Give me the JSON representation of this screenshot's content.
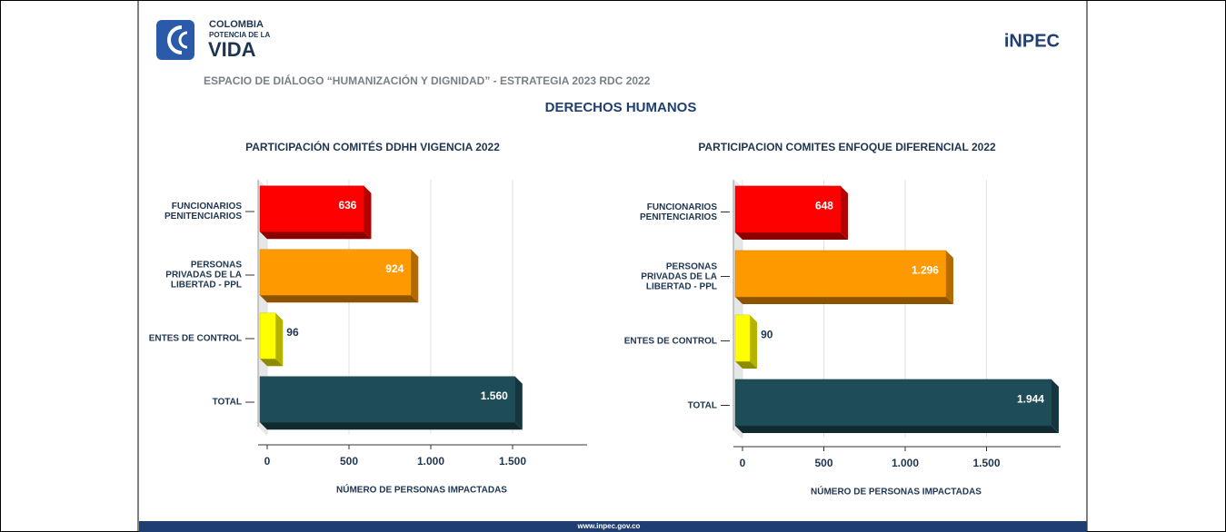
{
  "header": {
    "logo_top": "COLOMBIA",
    "logo_middle": "POTENCIA DE LA",
    "logo_bottom": "VIDA",
    "brand": "iNPEC",
    "title": "ESPACIO DE DIÁLOGO “HUMANIZACIÓN Y DIGNIDAD” - ESTRATEGIA 2023 RDC 2022",
    "subtitle": "DERECHOS HUMANOS"
  },
  "footer": "www.inpec.gov.co",
  "chart_data": [
    {
      "type": "hbar",
      "title": "PARTICIPACIÓN COMITÉS DDHH VIGENCIA 2022",
      "categories": [
        "FUNCIONARIOS\nPENITENCIARIOS",
        "PERSONAS\nPRIVADAS DE LA\nLIBERTAD - PPL",
        "ENTES DE CONTROL",
        "TOTAL"
      ],
      "values": [
        636,
        924,
        96,
        1560
      ],
      "value_labels": [
        "636",
        "924",
        "96",
        "1.560"
      ],
      "colors": [
        "#ff0000",
        "#ff9900",
        "#ffff00",
        "#1e4d58"
      ],
      "xlabel": "NÚMERO DE PERSONAS IMPACTADAS",
      "xlim": [
        0,
        2000
      ],
      "xticks": [
        0,
        500,
        {
          "value": 1000,
          "label": "1.000"
        },
        {
          "value": 1500,
          "label": "1.500"
        }
      ],
      "grid": true
    },
    {
      "type": "hbar",
      "title": "PARTICIPACION COMITES ENFOQUE DIFERENCIAL 2022",
      "categories": [
        "FUNCIONARIOS\nPENITENCIARIOS",
        "PERSONAS\nPRIVADAS DE LA\nLIBERTAD - PPL",
        "ENTES DE CONTROL",
        "TOTAL"
      ],
      "values": [
        648,
        1296,
        90,
        1944
      ],
      "value_labels": [
        "648",
        "1.296",
        "90",
        "1.944"
      ],
      "colors": [
        "#ff0000",
        "#ff9900",
        "#ffff00",
        "#1e4d58"
      ],
      "xlabel": "NÚMERO DE PERSONAS IMPACTADAS",
      "xlim": [
        0,
        2000
      ],
      "xticks": [
        0,
        500,
        {
          "value": 1000,
          "label": "1.000"
        },
        {
          "value": 1500,
          "label": "1.500"
        }
      ],
      "grid": true
    }
  ]
}
